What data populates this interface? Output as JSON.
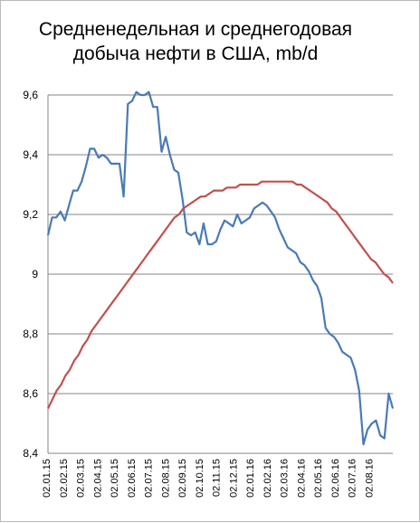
{
  "chart_data": {
    "type": "line",
    "title": "Средненедельная и среднегодовая добыча нефти в США, mb/d",
    "title_lines": [
      "Средненедельная и среднегодовая",
      "добыча нефти в США, mb/d"
    ],
    "xlabel": "",
    "ylabel": "",
    "ylim": [
      8.4,
      9.6
    ],
    "yticks": [
      "8,4",
      "8,6",
      "8,8",
      "9",
      "9,2",
      "9,4",
      "9,6"
    ],
    "ytick_values": [
      8.4,
      8.6,
      8.8,
      9.0,
      9.2,
      9.4,
      9.6
    ],
    "xticks": [
      "02.01.15",
      "02.02.15",
      "02.03.15",
      "02.04.15",
      "02.05.15",
      "02.06.15",
      "02.07.15",
      "02.08.15",
      "02.09.15",
      "02.10.15",
      "02.11.15",
      "02.12.15",
      "02.01.16",
      "02.02.16",
      "02.03.16",
      "02.04.16",
      "02.05.16",
      "02.06.16",
      "02.07.16",
      "02.08.16"
    ],
    "grid": true,
    "legend": "none",
    "colors": {
      "weekly": "#4a7ab5",
      "annual": "#c0504d",
      "grid": "#868686"
    },
    "series": [
      {
        "key": "weekly",
        "values": [
          9.13,
          9.19,
          9.19,
          9.21,
          9.18,
          9.23,
          9.28,
          9.28,
          9.31,
          9.36,
          9.42,
          9.42,
          9.39,
          9.4,
          9.39,
          9.37,
          9.37,
          9.37,
          9.26,
          9.57,
          9.58,
          9.61,
          9.6,
          9.6,
          9.61,
          9.56,
          9.56,
          9.41,
          9.46,
          9.4,
          9.35,
          9.34,
          9.25,
          9.14,
          9.13,
          9.14,
          9.1,
          9.17,
          9.1,
          9.1,
          9.11,
          9.15,
          9.18,
          9.17,
          9.16,
          9.2,
          9.17,
          9.18,
          9.19,
          9.22,
          9.23,
          9.24,
          9.23,
          9.21,
          9.19,
          9.15,
          9.12,
          9.09,
          9.08,
          9.07,
          9.04,
          9.03,
          9.01,
          8.98,
          8.96,
          8.92,
          8.82,
          8.8,
          8.79,
          8.77,
          8.74,
          8.73,
          8.72,
          8.68,
          8.61,
          8.43,
          8.48,
          8.5,
          8.51,
          8.46,
          8.45,
          8.6,
          8.55
        ]
      },
      {
        "key": "annual",
        "values": [
          8.55,
          8.58,
          8.61,
          8.63,
          8.66,
          8.68,
          8.71,
          8.73,
          8.76,
          8.78,
          8.81,
          8.83,
          8.85,
          8.87,
          8.89,
          8.91,
          8.93,
          8.95,
          8.97,
          8.99,
          9.01,
          9.03,
          9.05,
          9.07,
          9.09,
          9.11,
          9.13,
          9.15,
          9.17,
          9.19,
          9.2,
          9.22,
          9.23,
          9.24,
          9.25,
          9.26,
          9.26,
          9.27,
          9.28,
          9.28,
          9.28,
          9.29,
          9.29,
          9.29,
          9.3,
          9.3,
          9.3,
          9.3,
          9.3,
          9.31,
          9.31,
          9.31,
          9.31,
          9.31,
          9.31,
          9.31,
          9.31,
          9.3,
          9.3,
          9.29,
          9.28,
          9.27,
          9.26,
          9.25,
          9.24,
          9.22,
          9.21,
          9.19,
          9.17,
          9.15,
          9.13,
          9.11,
          9.09,
          9.07,
          9.05,
          9.04,
          9.02,
          9.0,
          8.99,
          8.97
        ]
      }
    ]
  }
}
